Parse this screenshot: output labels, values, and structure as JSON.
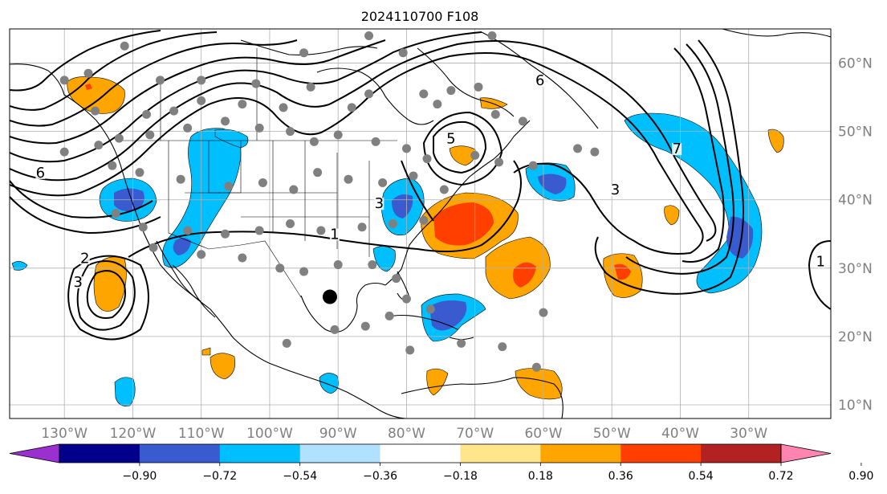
{
  "title": "2024110700 F108",
  "map": {
    "projection": "equirectangular",
    "lon_range": [
      -138,
      -18
    ],
    "lat_range": [
      8,
      65
    ],
    "grid": true,
    "lon_ticks": [
      {
        "value": -130,
        "label": "130°W"
      },
      {
        "value": -120,
        "label": "120°W"
      },
      {
        "value": -110,
        "label": "110°W"
      },
      {
        "value": -100,
        "label": "100°W"
      },
      {
        "value": -90,
        "label": "90°W"
      },
      {
        "value": -80,
        "label": "80°W"
      },
      {
        "value": -70,
        "label": "70°W"
      },
      {
        "value": -60,
        "label": "60°W"
      },
      {
        "value": -50,
        "label": "50°W"
      },
      {
        "value": -40,
        "label": "40°W"
      },
      {
        "value": -30,
        "label": "30°W"
      }
    ],
    "lat_ticks": [
      {
        "value": 10,
        "label": "10°N"
      },
      {
        "value": 20,
        "label": "20°N"
      },
      {
        "value": 30,
        "label": "30°N"
      },
      {
        "value": 40,
        "label": "40°N"
      },
      {
        "value": 50,
        "label": "50°N"
      },
      {
        "value": 60,
        "label": "60°N"
      }
    ]
  },
  "colorbar": {
    "ticks": [
      "−0.90",
      "−0.72",
      "−0.54",
      "−0.36",
      "−0.18",
      "0.18",
      "0.36",
      "0.54",
      "0.72",
      "0.90"
    ],
    "colors": [
      "#9b30d0",
      "#00008b",
      "#3a5bd0",
      "#00bfff",
      "#b0e2ff",
      "#ffffff",
      "#ffe68a",
      "#ffa500",
      "#ff3f00",
      "#b22222",
      "#ff85b0"
    ]
  },
  "contour_labels": [
    {
      "text": "6",
      "lon": -133.5,
      "lat": 43.5
    },
    {
      "text": "5",
      "lon": -73.5,
      "lat": 48.5
    },
    {
      "text": "6",
      "lon": -60.5,
      "lat": 57.0
    },
    {
      "text": "3",
      "lon": -84.0,
      "lat": 39.0
    },
    {
      "text": "1",
      "lon": -90.5,
      "lat": 34.5
    },
    {
      "text": "2",
      "lon": -127.0,
      "lat": 31.0
    },
    {
      "text": "3",
      "lon": -128.0,
      "lat": 27.5
    },
    {
      "text": "3",
      "lon": -49.5,
      "lat": 41.0
    },
    {
      "text": "7",
      "lon": -40.5,
      "lat": 47.0
    },
    {
      "text": "1",
      "lon": -19.5,
      "lat": 30.5
    }
  ],
  "stations": [
    [
      -121.2,
      62.5
    ],
    [
      -95.0,
      61.5
    ],
    [
      -80.5,
      61.5
    ],
    [
      -85.5,
      64.0
    ],
    [
      -67.5,
      64.0
    ],
    [
      -126.5,
      58.5
    ],
    [
      -130.0,
      57.5
    ],
    [
      -116.0,
      57.5
    ],
    [
      -110.0,
      57.5
    ],
    [
      -102.0,
      57.0
    ],
    [
      -94.0,
      56.5
    ],
    [
      -85.5,
      55.5
    ],
    [
      -77.5,
      55.5
    ],
    [
      -73.5,
      56.0
    ],
    [
      -69.5,
      56.5
    ],
    [
      -125.5,
      53.0
    ],
    [
      -118.0,
      52.5
    ],
    [
      -114.0,
      53.0
    ],
    [
      -110.0,
      54.5
    ],
    [
      -104.0,
      54.0
    ],
    [
      -98.0,
      53.5
    ],
    [
      -88.0,
      53.5
    ],
    [
      -75.5,
      54.0
    ],
    [
      -67.0,
      52.5
    ],
    [
      -63.0,
      51.5
    ],
    [
      -130.0,
      47.0
    ],
    [
      -125.0,
      48.0
    ],
    [
      -122.0,
      49.0
    ],
    [
      -117.5,
      49.5
    ],
    [
      -112.0,
      50.5
    ],
    [
      -106.5,
      51.5
    ],
    [
      -101.5,
      50.5
    ],
    [
      -97.0,
      50.0
    ],
    [
      -93.5,
      48.5
    ],
    [
      -90.0,
      49.5
    ],
    [
      -84.5,
      48.5
    ],
    [
      -80.0,
      47.5
    ],
    [
      -77.0,
      46.0
    ],
    [
      -70.0,
      46.5
    ],
    [
      -66.5,
      45.5
    ],
    [
      -61.5,
      45.0
    ],
    [
      -55.0,
      47.5
    ],
    [
      -52.5,
      47.0
    ],
    [
      -123.0,
      45.0
    ],
    [
      -119.0,
      44.0
    ],
    [
      -113.0,
      43.0
    ],
    [
      -106.0,
      42.0
    ],
    [
      -101.0,
      42.5
    ],
    [
      -96.5,
      41.5
    ],
    [
      -93.0,
      44.0
    ],
    [
      -88.5,
      43.0
    ],
    [
      -83.5,
      42.5
    ],
    [
      -79.0,
      43.5
    ],
    [
      -74.5,
      41.5
    ],
    [
      -122.5,
      38.0
    ],
    [
      -118.5,
      36.0
    ],
    [
      -112.0,
      35.5
    ],
    [
      -106.5,
      35.0
    ],
    [
      -101.5,
      35.5
    ],
    [
      -97.0,
      36.5
    ],
    [
      -92.5,
      35.5
    ],
    [
      -86.5,
      36.0
    ],
    [
      -82.0,
      36.5
    ],
    [
      -77.5,
      37.0
    ],
    [
      -117.0,
      33.0
    ],
    [
      -110.0,
      32.0
    ],
    [
      -104.0,
      31.5
    ],
    [
      -98.5,
      30.0
    ],
    [
      -95.0,
      29.5
    ],
    [
      -90.0,
      30.5
    ],
    [
      -85.0,
      30.5
    ],
    [
      -81.5,
      28.5
    ],
    [
      -80.0,
      25.5
    ],
    [
      -82.5,
      23.0
    ],
    [
      -76.5,
      24.0
    ],
    [
      -72.0,
      19.0
    ],
    [
      -66.0,
      18.5
    ],
    [
      -61.0,
      15.5
    ],
    [
      -79.5,
      18.0
    ],
    [
      -90.5,
      21.0
    ],
    [
      -97.5,
      19.0
    ],
    [
      -86.0,
      21.5
    ],
    [
      -60.0,
      23.5
    ]
  ],
  "marker": {
    "lon": -91.2,
    "lat": 25.8
  }
}
